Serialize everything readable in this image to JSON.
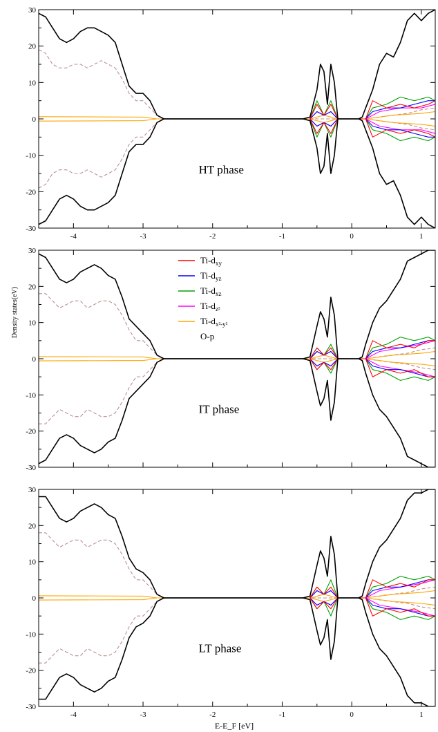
{
  "figure": {
    "xlabel": "E-E_F [eV]",
    "ylabel": "Density states(eV)"
  },
  "legend": {
    "entries": [
      {
        "label": "Ti-d",
        "sub": "xy",
        "color": "#ff0000"
      },
      {
        "label": "Ti-d",
        "sub": "yz",
        "color": "#0000ff"
      },
      {
        "label": "Ti-d",
        "sub": "xz",
        "color": "#00a000"
      },
      {
        "label": "Ti-d",
        "sub": "z²",
        "color": "#ff00ff"
      },
      {
        "label": "Ti-d",
        "sub": "x²-y²",
        "color": "#ffa500"
      },
      {
        "label": "O-p",
        "sub": "",
        "color": "#bc8f8f"
      }
    ]
  },
  "colors": {
    "total": "#000000",
    "op": "#bc8f8f",
    "xy": "#ff0000",
    "yz": "#0000ff",
    "xz": "#00a000",
    "z2": "#ff00ff",
    "x2y2": "#ffa500"
  },
  "chart_data": [
    {
      "type": "line",
      "phase_label": "HT phase",
      "xlim": [
        -4.5,
        1.2
      ],
      "ylim": [
        -30,
        30
      ],
      "xticks": [
        -4,
        -3,
        -2,
        -1,
        0,
        1
      ],
      "yticks": [
        -30,
        -20,
        -10,
        0,
        10,
        20,
        30
      ],
      "show_x_tick_labels": true,
      "series": [
        {
          "key": "total",
          "x": [
            -4.5,
            -4.4,
            -4.3,
            -4.2,
            -4.1,
            -4.0,
            -3.9,
            -3.8,
            -3.7,
            -3.6,
            -3.5,
            -3.4,
            -3.3,
            -3.2,
            -3.1,
            -3.0,
            -2.9,
            -2.8,
            -2.7,
            -2.6,
            -0.7,
            -0.6,
            -0.5,
            -0.45,
            -0.4,
            -0.35,
            -0.3,
            -0.25,
            -0.2,
            -0.1,
            0.0,
            0.1,
            0.15,
            0.2,
            0.3,
            0.4,
            0.5,
            0.6,
            0.7,
            0.8,
            0.9,
            1.0,
            1.1,
            1.2
          ],
          "y": [
            29,
            28,
            25,
            22,
            21,
            22,
            24,
            25,
            25,
            24,
            23,
            21,
            15,
            9,
            7,
            7,
            5,
            1,
            0,
            0,
            0,
            0.5,
            8,
            15,
            13,
            4,
            15,
            10,
            0,
            0,
            0,
            0,
            0.5,
            3,
            8,
            15,
            18,
            17,
            21,
            27,
            29,
            27,
            29,
            30
          ]
        },
        {
          "key": "op",
          "dashed": true,
          "x": [
            -4.5,
            -4.4,
            -4.3,
            -4.2,
            -4.1,
            -4.0,
            -3.9,
            -3.8,
            -3.7,
            -3.6,
            -3.5,
            -3.4,
            -3.3,
            -3.2,
            -3.1,
            -3.0,
            -2.9,
            -2.8,
            -2.7,
            -2.6,
            0.2,
            0.5,
            0.8,
            1.0,
            1.2
          ],
          "y": [
            19,
            18,
            15,
            14,
            14,
            15,
            15,
            14,
            15,
            16,
            15,
            14,
            11,
            7,
            5,
            5,
            3,
            1,
            0,
            0,
            0,
            0.8,
            1.5,
            2.5,
            3
          ]
        },
        {
          "key": "xy",
          "x": [
            -0.6,
            -0.5,
            -0.4,
            -0.3,
            -0.2,
            0.2,
            0.3,
            0.5,
            0.7,
            0.9,
            1.1,
            1.2
          ],
          "y": [
            0,
            4,
            1,
            4,
            0,
            0,
            5,
            3,
            4,
            3,
            4,
            5
          ]
        },
        {
          "key": "yz",
          "x": [
            -0.6,
            -0.5,
            -0.4,
            -0.3,
            -0.2,
            0.2,
            0.3,
            0.5,
            0.7,
            0.9,
            1.1,
            1.2
          ],
          "y": [
            0,
            2,
            1,
            2,
            0,
            0,
            2,
            3,
            3,
            4,
            5,
            5
          ]
        },
        {
          "key": "xz",
          "x": [
            -0.6,
            -0.5,
            -0.4,
            -0.3,
            -0.2,
            0.2,
            0.3,
            0.5,
            0.7,
            0.9,
            1.1,
            1.2
          ],
          "y": [
            0,
            5,
            1,
            5,
            0,
            0,
            3,
            4,
            6,
            5,
            6,
            5
          ]
        },
        {
          "key": "z2",
          "x": [
            -0.6,
            -0.5,
            -0.4,
            -0.3,
            -0.2,
            0.2,
            0.4,
            0.7,
            1.0,
            1.2
          ],
          "y": [
            0,
            2,
            1,
            2,
            0,
            0,
            2,
            3,
            3,
            4
          ]
        },
        {
          "key": "x2y2",
          "x": [
            -4.5,
            -3.0,
            -2.8,
            -0.6,
            -0.4,
            -0.2,
            0.2,
            0.6,
            1.0,
            1.2
          ],
          "y": [
            0.6,
            0.5,
            0,
            0,
            1,
            0,
            0,
            1,
            1.5,
            2
          ]
        }
      ]
    },
    {
      "type": "line",
      "phase_label": "IT phase",
      "xlim": [
        -4.5,
        1.2
      ],
      "ylim": [
        -30,
        30
      ],
      "xticks": [
        -4,
        -3,
        -2,
        -1,
        0,
        1
      ],
      "yticks": [
        -30,
        -20,
        -10,
        0,
        10,
        20,
        30
      ],
      "show_x_tick_labels": false,
      "series": [
        {
          "key": "total",
          "x": [
            -4.5,
            -4.4,
            -4.3,
            -4.2,
            -4.1,
            -4.0,
            -3.9,
            -3.8,
            -3.7,
            -3.6,
            -3.5,
            -3.4,
            -3.3,
            -3.2,
            -3.1,
            -3.0,
            -2.9,
            -2.8,
            -2.7,
            -2.6,
            -0.7,
            -0.6,
            -0.5,
            -0.45,
            -0.4,
            -0.35,
            -0.3,
            -0.25,
            -0.2,
            -0.1,
            0.0,
            0.1,
            0.15,
            0.2,
            0.3,
            0.4,
            0.5,
            0.6,
            0.7,
            0.8,
            0.9,
            1.0,
            1.1,
            1.2
          ],
          "y": [
            29,
            28,
            25,
            22,
            21,
            22,
            24,
            25,
            26,
            25,
            23,
            22,
            17,
            11,
            9,
            7,
            5,
            1,
            0,
            0,
            0,
            0.5,
            9,
            13,
            11,
            6,
            17,
            12,
            0,
            0,
            0,
            0,
            0.5,
            4,
            10,
            14,
            16,
            19,
            22,
            27,
            28,
            29,
            30,
            30
          ]
        },
        {
          "key": "op",
          "dashed": true,
          "x": [
            -4.5,
            -4.4,
            -4.3,
            -4.2,
            -4.1,
            -4.0,
            -3.9,
            -3.8,
            -3.7,
            -3.6,
            -3.5,
            -3.4,
            -3.3,
            -3.2,
            -3.1,
            -3.0,
            -2.9,
            -2.8,
            -2.7,
            -2.6,
            0.2,
            0.5,
            0.8,
            1.0,
            1.2
          ],
          "y": [
            18,
            18,
            16,
            14,
            15,
            16,
            16,
            14,
            15,
            16,
            16,
            15,
            12,
            8,
            5,
            5,
            3,
            1,
            0,
            0,
            0,
            0.8,
            1.5,
            2.5,
            3
          ]
        },
        {
          "key": "xy",
          "x": [
            -0.6,
            -0.5,
            -0.4,
            -0.3,
            -0.2,
            0.2,
            0.3,
            0.5,
            0.7,
            0.9,
            1.1,
            1.2
          ],
          "y": [
            0,
            3,
            1,
            3,
            0,
            0,
            5,
            3,
            4,
            3,
            5,
            5
          ]
        },
        {
          "key": "yz",
          "x": [
            -0.6,
            -0.5,
            -0.4,
            -0.3,
            -0.2,
            0.2,
            0.3,
            0.5,
            0.7,
            0.9,
            1.1,
            1.2
          ],
          "y": [
            0,
            2,
            1,
            2,
            0,
            0,
            2,
            3,
            3,
            4,
            5,
            5
          ]
        },
        {
          "key": "xz",
          "x": [
            -0.6,
            -0.5,
            -0.4,
            -0.3,
            -0.2,
            0.2,
            0.3,
            0.5,
            0.7,
            0.9,
            1.1,
            1.2
          ],
          "y": [
            0,
            3,
            1,
            4,
            0,
            0,
            3,
            4,
            6,
            5,
            6,
            5
          ]
        },
        {
          "key": "z2",
          "x": [
            -0.6,
            -0.5,
            -0.4,
            -0.3,
            -0.2,
            0.2,
            0.4,
            0.7,
            1.0,
            1.2
          ],
          "y": [
            0,
            2,
            1,
            2,
            0,
            0,
            2,
            3,
            4,
            5
          ]
        },
        {
          "key": "x2y2",
          "x": [
            -4.5,
            -3.0,
            -2.8,
            -0.6,
            -0.4,
            -0.2,
            0.2,
            0.6,
            1.0,
            1.2
          ],
          "y": [
            0.6,
            0.5,
            0,
            0,
            1,
            0,
            0,
            1,
            1.5,
            2
          ]
        }
      ]
    },
    {
      "type": "line",
      "phase_label": "LT phase",
      "xlim": [
        -4.5,
        1.2
      ],
      "ylim": [
        -30,
        30
      ],
      "xticks": [
        -4,
        -3,
        -2,
        -1,
        0,
        1
      ],
      "yticks": [
        -30,
        -20,
        -10,
        0,
        10,
        20,
        30
      ],
      "show_x_tick_labels": true,
      "series": [
        {
          "key": "total",
          "x": [
            -4.5,
            -4.4,
            -4.3,
            -4.2,
            -4.1,
            -4.0,
            -3.9,
            -3.8,
            -3.7,
            -3.6,
            -3.5,
            -3.4,
            -3.3,
            -3.2,
            -3.1,
            -3.0,
            -2.9,
            -2.8,
            -2.7,
            -2.6,
            -0.7,
            -0.6,
            -0.5,
            -0.45,
            -0.4,
            -0.35,
            -0.3,
            -0.25,
            -0.2,
            -0.1,
            0.0,
            0.1,
            0.15,
            0.2,
            0.3,
            0.4,
            0.5,
            0.6,
            0.7,
            0.8,
            0.9,
            1.0,
            1.1,
            1.2
          ],
          "y": [
            28,
            28,
            25,
            22,
            21,
            22,
            24,
            25,
            26,
            25,
            23,
            22,
            17,
            11,
            8,
            7,
            5,
            1,
            0,
            0,
            0,
            0.5,
            9,
            13,
            11,
            6,
            17,
            12,
            0,
            0,
            0,
            0,
            0.5,
            4,
            10,
            14,
            16,
            19,
            22,
            27,
            29,
            29,
            30,
            30
          ]
        },
        {
          "key": "op",
          "dashed": true,
          "x": [
            -4.5,
            -4.4,
            -4.3,
            -4.2,
            -4.1,
            -4.0,
            -3.9,
            -3.8,
            -3.7,
            -3.6,
            -3.5,
            -3.4,
            -3.3,
            -3.2,
            -3.1,
            -3.0,
            -2.9,
            -2.8,
            -2.7,
            -2.6,
            0.2,
            0.5,
            0.8,
            1.0,
            1.2
          ],
          "y": [
            18,
            18,
            16,
            14,
            15,
            16,
            16,
            14,
            15,
            16,
            16,
            15,
            12,
            8,
            5,
            5,
            3,
            1,
            0,
            0,
            0,
            0.8,
            1.5,
            2.5,
            3
          ]
        },
        {
          "key": "xy",
          "x": [
            -0.6,
            -0.5,
            -0.4,
            -0.3,
            -0.2,
            0.2,
            0.3,
            0.5,
            0.7,
            0.9,
            1.1,
            1.2
          ],
          "y": [
            0,
            3,
            1,
            3,
            0,
            0,
            5,
            3,
            4,
            3,
            5,
            5
          ]
        },
        {
          "key": "yz",
          "x": [
            -0.6,
            -0.5,
            -0.4,
            -0.3,
            -0.2,
            0.2,
            0.3,
            0.5,
            0.7,
            0.9,
            1.1,
            1.2
          ],
          "y": [
            0,
            2,
            1,
            2,
            0,
            0,
            2,
            3,
            3,
            4,
            5,
            5
          ]
        },
        {
          "key": "xz",
          "x": [
            -0.6,
            -0.5,
            -0.4,
            -0.3,
            -0.2,
            0.2,
            0.3,
            0.5,
            0.7,
            0.9,
            1.1,
            1.2
          ],
          "y": [
            0,
            3,
            1,
            5,
            0,
            0,
            3,
            4,
            6,
            5,
            6,
            5
          ]
        },
        {
          "key": "z2",
          "x": [
            -0.6,
            -0.5,
            -0.4,
            -0.3,
            -0.2,
            0.2,
            0.4,
            0.7,
            1.0,
            1.2
          ],
          "y": [
            0,
            2,
            1,
            2,
            0,
            0,
            2,
            3,
            4,
            5
          ]
        },
        {
          "key": "x2y2",
          "x": [
            -4.5,
            -3.0,
            -2.8,
            -0.6,
            -0.4,
            -0.2,
            0.2,
            0.6,
            1.0,
            1.2
          ],
          "y": [
            0.6,
            0.5,
            0,
            0,
            1,
            0,
            0,
            1,
            1.5,
            2
          ]
        }
      ]
    }
  ]
}
